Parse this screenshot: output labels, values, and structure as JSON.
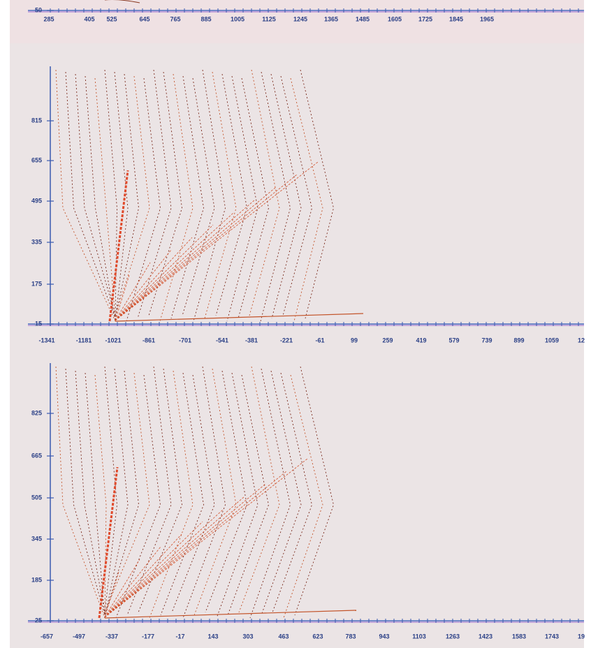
{
  "panels": [
    {
      "y_ticks": [
        "50"
      ],
      "x_ticks": [
        "285",
        "405",
        "525",
        "645",
        "765",
        "885",
        "1005",
        "1125",
        "1245",
        "1365",
        "1485",
        "1605",
        "1725",
        "1845",
        "1965"
      ]
    },
    {
      "y_ticks": [
        "815",
        "655",
        "495",
        "335",
        "175",
        "15"
      ],
      "x_ticks": [
        "-1341",
        "-1181",
        "-1021",
        "-861",
        "-701",
        "-541",
        "-381",
        "-221",
        "-61",
        "99",
        "259",
        "419",
        "579",
        "739",
        "899",
        "1059",
        "12"
      ]
    },
    {
      "y_ticks": [
        "825",
        "665",
        "505",
        "345",
        "185",
        "25"
      ],
      "x_ticks": [
        "-657",
        "-497",
        "-337",
        "-177",
        "-17",
        "143",
        "303",
        "463",
        "623",
        "783",
        "943",
        "1103",
        "1263",
        "1423",
        "1583",
        "1743",
        "19"
      ]
    }
  ]
}
